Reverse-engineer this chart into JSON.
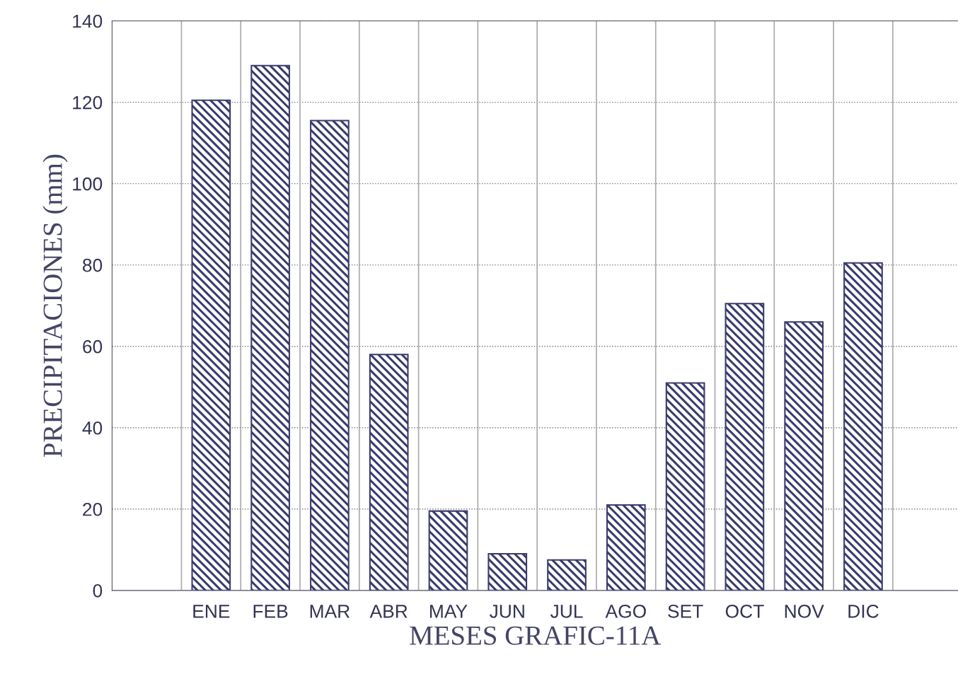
{
  "chart_data": {
    "type": "bar",
    "xlabel": "MESES GRAFIC-11A",
    "ylabel": "PRECIPITACIONES (mm)",
    "categories": [
      "ENE",
      "FEB",
      "MAR",
      "ABR",
      "MAY",
      "JUN",
      "JUL",
      "AGO",
      "SET",
      "OCT",
      "NOV",
      "DIC"
    ],
    "values": [
      120.5,
      129,
      115.5,
      58,
      19.5,
      9,
      7.5,
      21,
      51,
      70.5,
      66,
      80.5
    ],
    "color": "#3b3b6e",
    "ylim": [
      0,
      140
    ],
    "yticks": [
      0,
      20,
      40,
      60,
      80,
      100,
      120,
      140
    ],
    "grid": true
  }
}
